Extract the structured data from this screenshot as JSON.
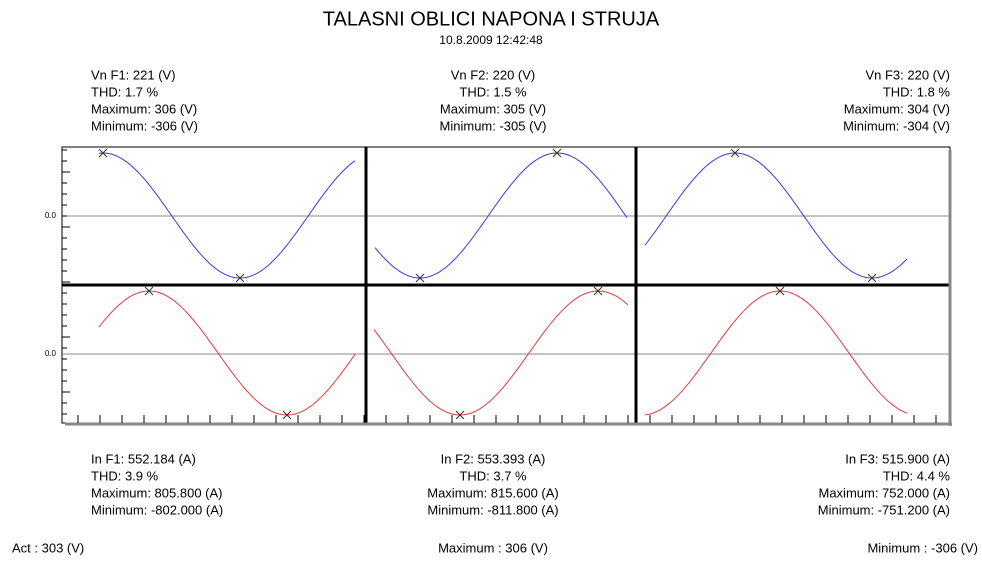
{
  "header": {
    "title": "TALASNI OBLICI NAPONA I STRUJA",
    "subtitle": "10.8.2009 12:42:48"
  },
  "voltage_panels": [
    {
      "lines": [
        "Vn F1: 221 (V)",
        "THD: 1.7 %",
        "Maximum: 306 (V)",
        "Minimum: -306 (V)"
      ]
    },
    {
      "lines": [
        "Vn F2: 220 (V)",
        "THD: 1.5 %",
        "Maximum: 305 (V)",
        "Minimum: -305 (V)"
      ]
    },
    {
      "lines": [
        "Vn F3: 220 (V)",
        "THD: 1.8 %",
        "Maximum: 304 (V)",
        "Minimum: -304 (V)"
      ]
    }
  ],
  "current_panels": [
    {
      "lines": [
        "In F1: 552.184 (A)",
        "THD: 3.9 %",
        "Maximum: 805.800 (A)",
        "Minimum: -802.000 (A)"
      ]
    },
    {
      "lines": [
        "In F2: 553.393 (A)",
        "THD: 3.7 %",
        "Maximum: 815.600 (A)",
        "Minimum: -811.800 (A)"
      ]
    },
    {
      "lines": [
        "In F3: 515.900 (A)",
        "THD: 4.4 %",
        "Maximum: 752.000 (A)",
        "Minimum: -751.200 (A)"
      ]
    }
  ],
  "axis_labels": [
    "0.0",
    "0.0"
  ],
  "footer": {
    "act": "Act : 303 (V)",
    "maximum": "Maximum : 306 (V)",
    "minimum": "Minimum : -306 (V)"
  }
}
